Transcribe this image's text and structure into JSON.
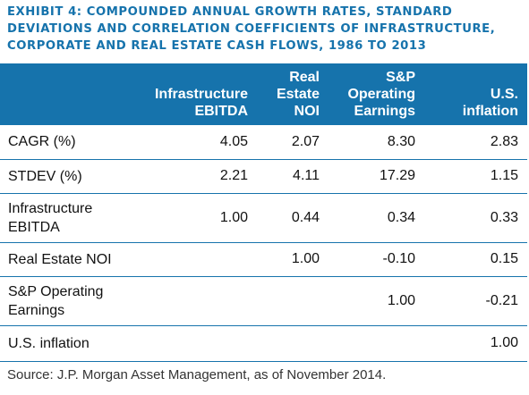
{
  "title": {
    "line1": "EXHIBIT 4: COMPOUNDED ANNUAL GROWTH RATES, STANDARD",
    "line2": "DEVIATIONS AND CORRELATION COEFFICIENTS OF INFRASTRUCTURE,",
    "line3": "CORPORATE AND REAL ESTATE CASH FLOWS, 1986 TO 2013"
  },
  "table": {
    "headers": [
      "",
      "Infrastructure\nEBITDA",
      "Real\nEstate\nNOI",
      "S&P\nOperating\nEarnings",
      "U.S.\ninflation"
    ],
    "rows": [
      {
        "label": "CAGR (%)",
        "values": [
          "4.05",
          "2.07",
          "8.30",
          "2.83"
        ]
      },
      {
        "label": "STDEV (%)",
        "values": [
          "2.21",
          "4.11",
          "17.29",
          "1.15"
        ]
      },
      {
        "label": "Infrastructure\nEBITDA",
        "values": [
          "1.00",
          "0.44",
          "0.34",
          "0.33"
        ]
      },
      {
        "label": "Real Estate NOI",
        "values": [
          "",
          "1.00",
          "-0.10",
          "0.15"
        ]
      },
      {
        "label": "S&P Operating\nEarnings",
        "values": [
          "",
          "",
          "1.00",
          "-0.21"
        ]
      },
      {
        "label": "U.S. inflation",
        "values": [
          "",
          "",
          "",
          "1.00"
        ]
      }
    ]
  },
  "source": "Source: J.P. Morgan Asset Management, as of November 2014.",
  "colors": {
    "accent": "#1673ac",
    "header_text": "#ffffff",
    "body_text": "#111111"
  }
}
